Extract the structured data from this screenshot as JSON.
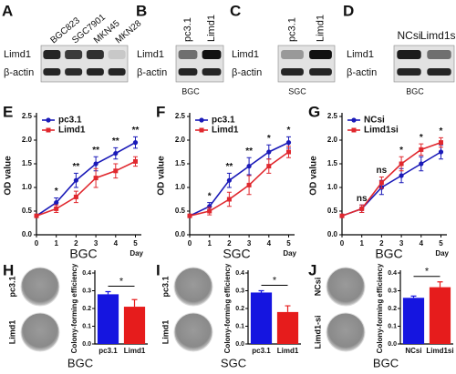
{
  "blots": [
    {
      "panel": "A",
      "lanes": [
        "BGC823",
        "SGC7901",
        "MKN45",
        "MKN28"
      ],
      "rows": [
        "Limd1",
        "β-actin"
      ]
    },
    {
      "panel": "B",
      "lanes": [
        "pc3.1",
        "Limd1"
      ],
      "rows": [
        "Limd1",
        "β-actin"
      ],
      "caption": "BGC"
    },
    {
      "panel": "C",
      "lanes": [
        "pc3.1",
        "Limd1"
      ],
      "rows": [
        "Limd1",
        "β-actin"
      ],
      "caption": "SGC"
    },
    {
      "panel": "D",
      "lanes": [
        "NCsi",
        "Limd1si"
      ],
      "rows": [
        "Limd1",
        "β-actin"
      ],
      "caption": "BGC"
    }
  ],
  "chart_data": [
    {
      "type": "line",
      "panel": "E",
      "x": [
        0,
        1,
        2,
        3,
        4,
        5
      ],
      "xlim": [
        0,
        5.3
      ],
      "xticks": [
        0,
        1,
        2,
        3,
        4,
        5
      ],
      "x_label": "BGC",
      "x_unit": "Day",
      "y_label": "OD value",
      "ylim": [
        0,
        2.5
      ],
      "yticks": [
        {
          "value": 0,
          "label": "0.0"
        },
        {
          "value": 0.5,
          "label": "0.5"
        },
        {
          "value": 1,
          "label": "1.0"
        },
        {
          "value": 1.5,
          "label": "1.5"
        },
        {
          "value": 2,
          "label": "2.0"
        },
        {
          "value": 2.5,
          "label": "2.5"
        }
      ],
      "series": [
        {
          "name": "pc3.1",
          "color": "#1a1ab8",
          "marker": "circle",
          "values": [
            0.4,
            0.68,
            1.15,
            1.5,
            1.72,
            1.95
          ],
          "errors": [
            0.03,
            0.1,
            0.15,
            0.15,
            0.12,
            0.12
          ]
        },
        {
          "name": "Limd1",
          "color": "#e0282e",
          "marker": "square",
          "values": [
            0.4,
            0.55,
            0.8,
            1.2,
            1.35,
            1.55
          ],
          "errors": [
            0.03,
            0.08,
            0.12,
            0.2,
            0.15,
            0.1
          ]
        }
      ],
      "annotations": [
        {
          "x": 1,
          "text": "*"
        },
        {
          "x": 2,
          "text": "**"
        },
        {
          "x": 3,
          "text": "**"
        },
        {
          "x": 4,
          "text": "**"
        },
        {
          "x": 5,
          "text": "**"
        }
      ]
    },
    {
      "type": "line",
      "panel": "F",
      "x": [
        0,
        1,
        2,
        3,
        4,
        5
      ],
      "xlim": [
        0,
        5.3
      ],
      "xticks": [
        0,
        1,
        2,
        3,
        4,
        5
      ],
      "x_label": "SGC",
      "x_unit": "Day",
      "y_label": "OD value",
      "ylim": [
        0,
        2.5
      ],
      "yticks": [
        {
          "value": 0,
          "label": "0.0"
        },
        {
          "value": 0.5,
          "label": "0.5"
        },
        {
          "value": 1,
          "label": "1.0"
        },
        {
          "value": 1.5,
          "label": "1.5"
        },
        {
          "value": 2,
          "label": "2.0"
        },
        {
          "value": 2.5,
          "label": "2.5"
        }
      ],
      "series": [
        {
          "name": "pc3.1",
          "color": "#1a1ab8",
          "marker": "circle",
          "values": [
            0.4,
            0.6,
            1.15,
            1.45,
            1.75,
            1.95
          ],
          "errors": [
            0.03,
            0.08,
            0.15,
            0.18,
            0.15,
            0.12
          ]
        },
        {
          "name": "Limd1",
          "color": "#e0282e",
          "marker": "square",
          "values": [
            0.4,
            0.5,
            0.75,
            1.05,
            1.45,
            1.75
          ],
          "errors": [
            0.03,
            0.08,
            0.15,
            0.2,
            0.15,
            0.12
          ]
        }
      ],
      "annotations": [
        {
          "x": 1,
          "text": "*"
        },
        {
          "x": 2,
          "text": "**"
        },
        {
          "x": 3,
          "text": "**"
        },
        {
          "x": 4,
          "text": "*"
        },
        {
          "x": 5,
          "text": "*"
        }
      ]
    },
    {
      "type": "line",
      "panel": "G",
      "x": [
        0,
        1,
        2,
        3,
        4,
        5
      ],
      "xlim": [
        0,
        5.3
      ],
      "xticks": [
        0,
        1,
        2,
        3,
        4,
        5
      ],
      "x_label": "BGC",
      "x_unit": "Day",
      "y_label": "OD value",
      "ylim": [
        0,
        2.5
      ],
      "yticks": [
        {
          "value": 0,
          "label": "0.0"
        },
        {
          "value": 0.5,
          "label": "0.5"
        },
        {
          "value": 1,
          "label": "1.0"
        },
        {
          "value": 1.5,
          "label": "1.5"
        },
        {
          "value": 2,
          "label": "2.0"
        },
        {
          "value": 2.5,
          "label": "2.5"
        }
      ],
      "series": [
        {
          "name": "NCsi",
          "color": "#1a1ab8",
          "marker": "circle",
          "values": [
            0.4,
            0.55,
            1.0,
            1.25,
            1.5,
            1.75
          ],
          "errors": [
            0.03,
            0.08,
            0.15,
            0.15,
            0.15,
            0.15
          ]
        },
        {
          "name": "Limd1si",
          "color": "#e0282e",
          "marker": "square",
          "values": [
            0.4,
            0.55,
            1.1,
            1.5,
            1.8,
            1.95
          ],
          "errors": [
            0.03,
            0.08,
            0.12,
            0.15,
            0.12,
            0.1
          ]
        }
      ],
      "annotations": [
        {
          "x": 1,
          "text": "ns"
        },
        {
          "x": 2,
          "text": "ns"
        },
        {
          "x": 3,
          "text": "*"
        },
        {
          "x": 4,
          "text": "*"
        },
        {
          "x": 5,
          "text": "*"
        }
      ]
    },
    {
      "type": "bar",
      "panel": "H",
      "plates": [
        "pc3.1",
        "Limd1"
      ],
      "categories": [
        "pc3.1",
        "Limd1"
      ],
      "values": [
        0.28,
        0.21
      ],
      "errors": [
        0.015,
        0.04
      ],
      "colors": [
        "#1515e0",
        "#e61c1c"
      ],
      "ylim": [
        0,
        0.4
      ],
      "yticks": [
        {
          "value": 0,
          "label": "0.0"
        },
        0.1,
        0.2,
        0.3,
        0.4
      ],
      "y_label": "Colony-forming efficiency",
      "x_label": "BGC",
      "annotations": [
        {
          "text": "*"
        }
      ]
    },
    {
      "type": "bar",
      "panel": "I",
      "plates": [
        "pc3.1",
        "Limd1"
      ],
      "categories": [
        "pc3.1",
        "Limd1"
      ],
      "values": [
        0.29,
        0.18
      ],
      "errors": [
        0.01,
        0.035
      ],
      "colors": [
        "#1515e0",
        "#e61c1c"
      ],
      "ylim": [
        0,
        0.4
      ],
      "yticks": [
        {
          "value": 0,
          "label": "0.0"
        },
        0.1,
        0.2,
        0.3,
        0.4
      ],
      "y_label": "Colony-forming efficiency",
      "x_label": "SGC",
      "annotations": [
        {
          "text": "*"
        }
      ]
    },
    {
      "type": "bar",
      "panel": "J",
      "plates": [
        "NCsi",
        "Limd1-si"
      ],
      "categories": [
        "NCsi",
        "Limd1si"
      ],
      "values": [
        0.26,
        0.32
      ],
      "errors": [
        0.01,
        0.03
      ],
      "colors": [
        "#1515e0",
        "#e61c1c"
      ],
      "ylim": [
        0,
        0.4
      ],
      "yticks": [
        {
          "value": 0,
          "label": "0.0"
        },
        0.1,
        0.2,
        0.3,
        0.4
      ],
      "y_label": "Colony-forming efficiency",
      "x_label": "BGC",
      "annotations": [
        {
          "text": "*"
        }
      ]
    }
  ]
}
